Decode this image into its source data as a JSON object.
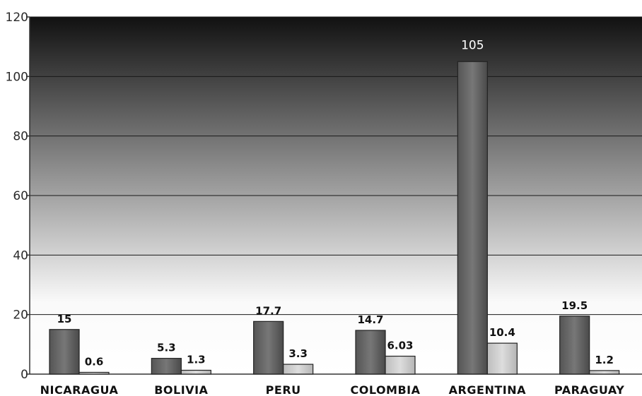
{
  "chart_data": {
    "type": "bar",
    "title": "",
    "xlabel": "",
    "ylabel": "",
    "categories": [
      "NICARAGUA",
      "BOLIVIA",
      "PERU",
      "COLOMBIA",
      "ARGENTINA",
      "PARAGUAY"
    ],
    "series": [
      {
        "values": [
          15,
          5.3,
          17.7,
          14.7,
          105,
          19.5
        ],
        "labels": [
          "15",
          "5.3",
          "17.7",
          "14.7",
          "105",
          "19.5"
        ],
        "color": "#6f6f6f"
      },
      {
        "values": [
          0.6,
          1.3,
          3.3,
          6.03,
          10.4,
          1.2
        ],
        "labels": [
          "0.6",
          "1.3",
          "3.3",
          "6.03",
          "10.4",
          "1.2"
        ],
        "color": "#c8c8c8"
      }
    ],
    "ylim": [
      0,
      120
    ],
    "yticks": [
      "0",
      "20",
      "40",
      "60",
      "80",
      "100",
      "120"
    ],
    "grid": true,
    "legend": "none",
    "background_gradient": [
      "#111111",
      "#ffffff"
    ]
  }
}
